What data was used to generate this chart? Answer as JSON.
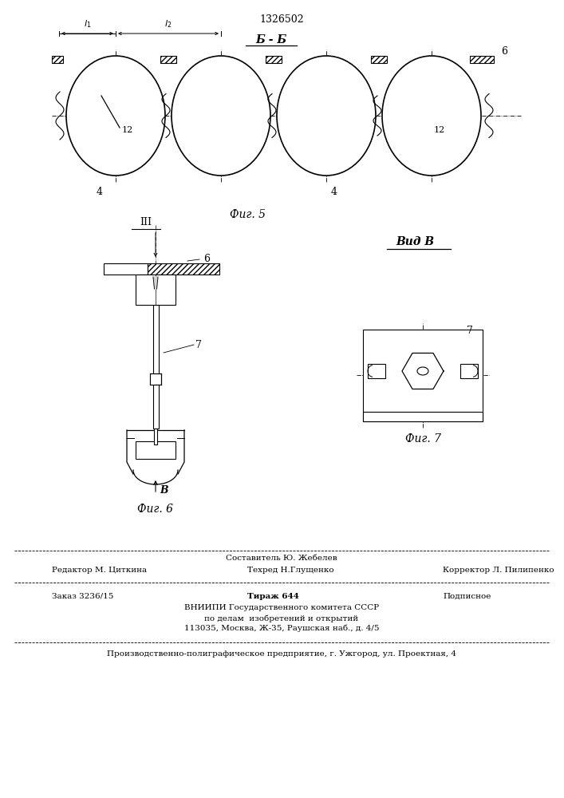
{
  "patent_number": "1326502",
  "fig5_label": "Б - Б",
  "fig5_caption": "Фиг. 5",
  "fig6_caption": "Фиг. 6",
  "fig7_caption": "Фиг. 7",
  "vid_b_label": "Вид В",
  "label_l1": "l1",
  "label_l2": "l2",
  "label_6_top": "6",
  "label_4_left": "4",
  "label_4_right": "4",
  "label_12_left": "12",
  "label_12_right": "12",
  "label_6_fig6": "6",
  "label_7_fig6": "7",
  "label_7_fig7": "7",
  "label_B_arrow": "В",
  "staff_above": "Составитель Ю. Жебелев",
  "staff_line1_left": "Редактор М. Циткина",
  "staff_line1_center": "Техред Н.Глущенко",
  "staff_line1_right": "Корректор Л. Пилипенко",
  "order_left": "Заказ 3236/15",
  "order_center_bold": "Тираж 644",
  "order_center_right": "Подписное",
  "vniipi_line1": "ВНИИПИ Государственного комитета СССР",
  "vniipi_line2": "по делам  изобретений и открытий",
  "vniipi_line3": "113035, Москва, Ж-35, Раушская наб., д. 4/5",
  "production_line": "Производственно-полиграфическое предприятие, г. Ужгород, ул. Проектная, 4",
  "bg_color": "#ffffff",
  "line_color": "#000000"
}
